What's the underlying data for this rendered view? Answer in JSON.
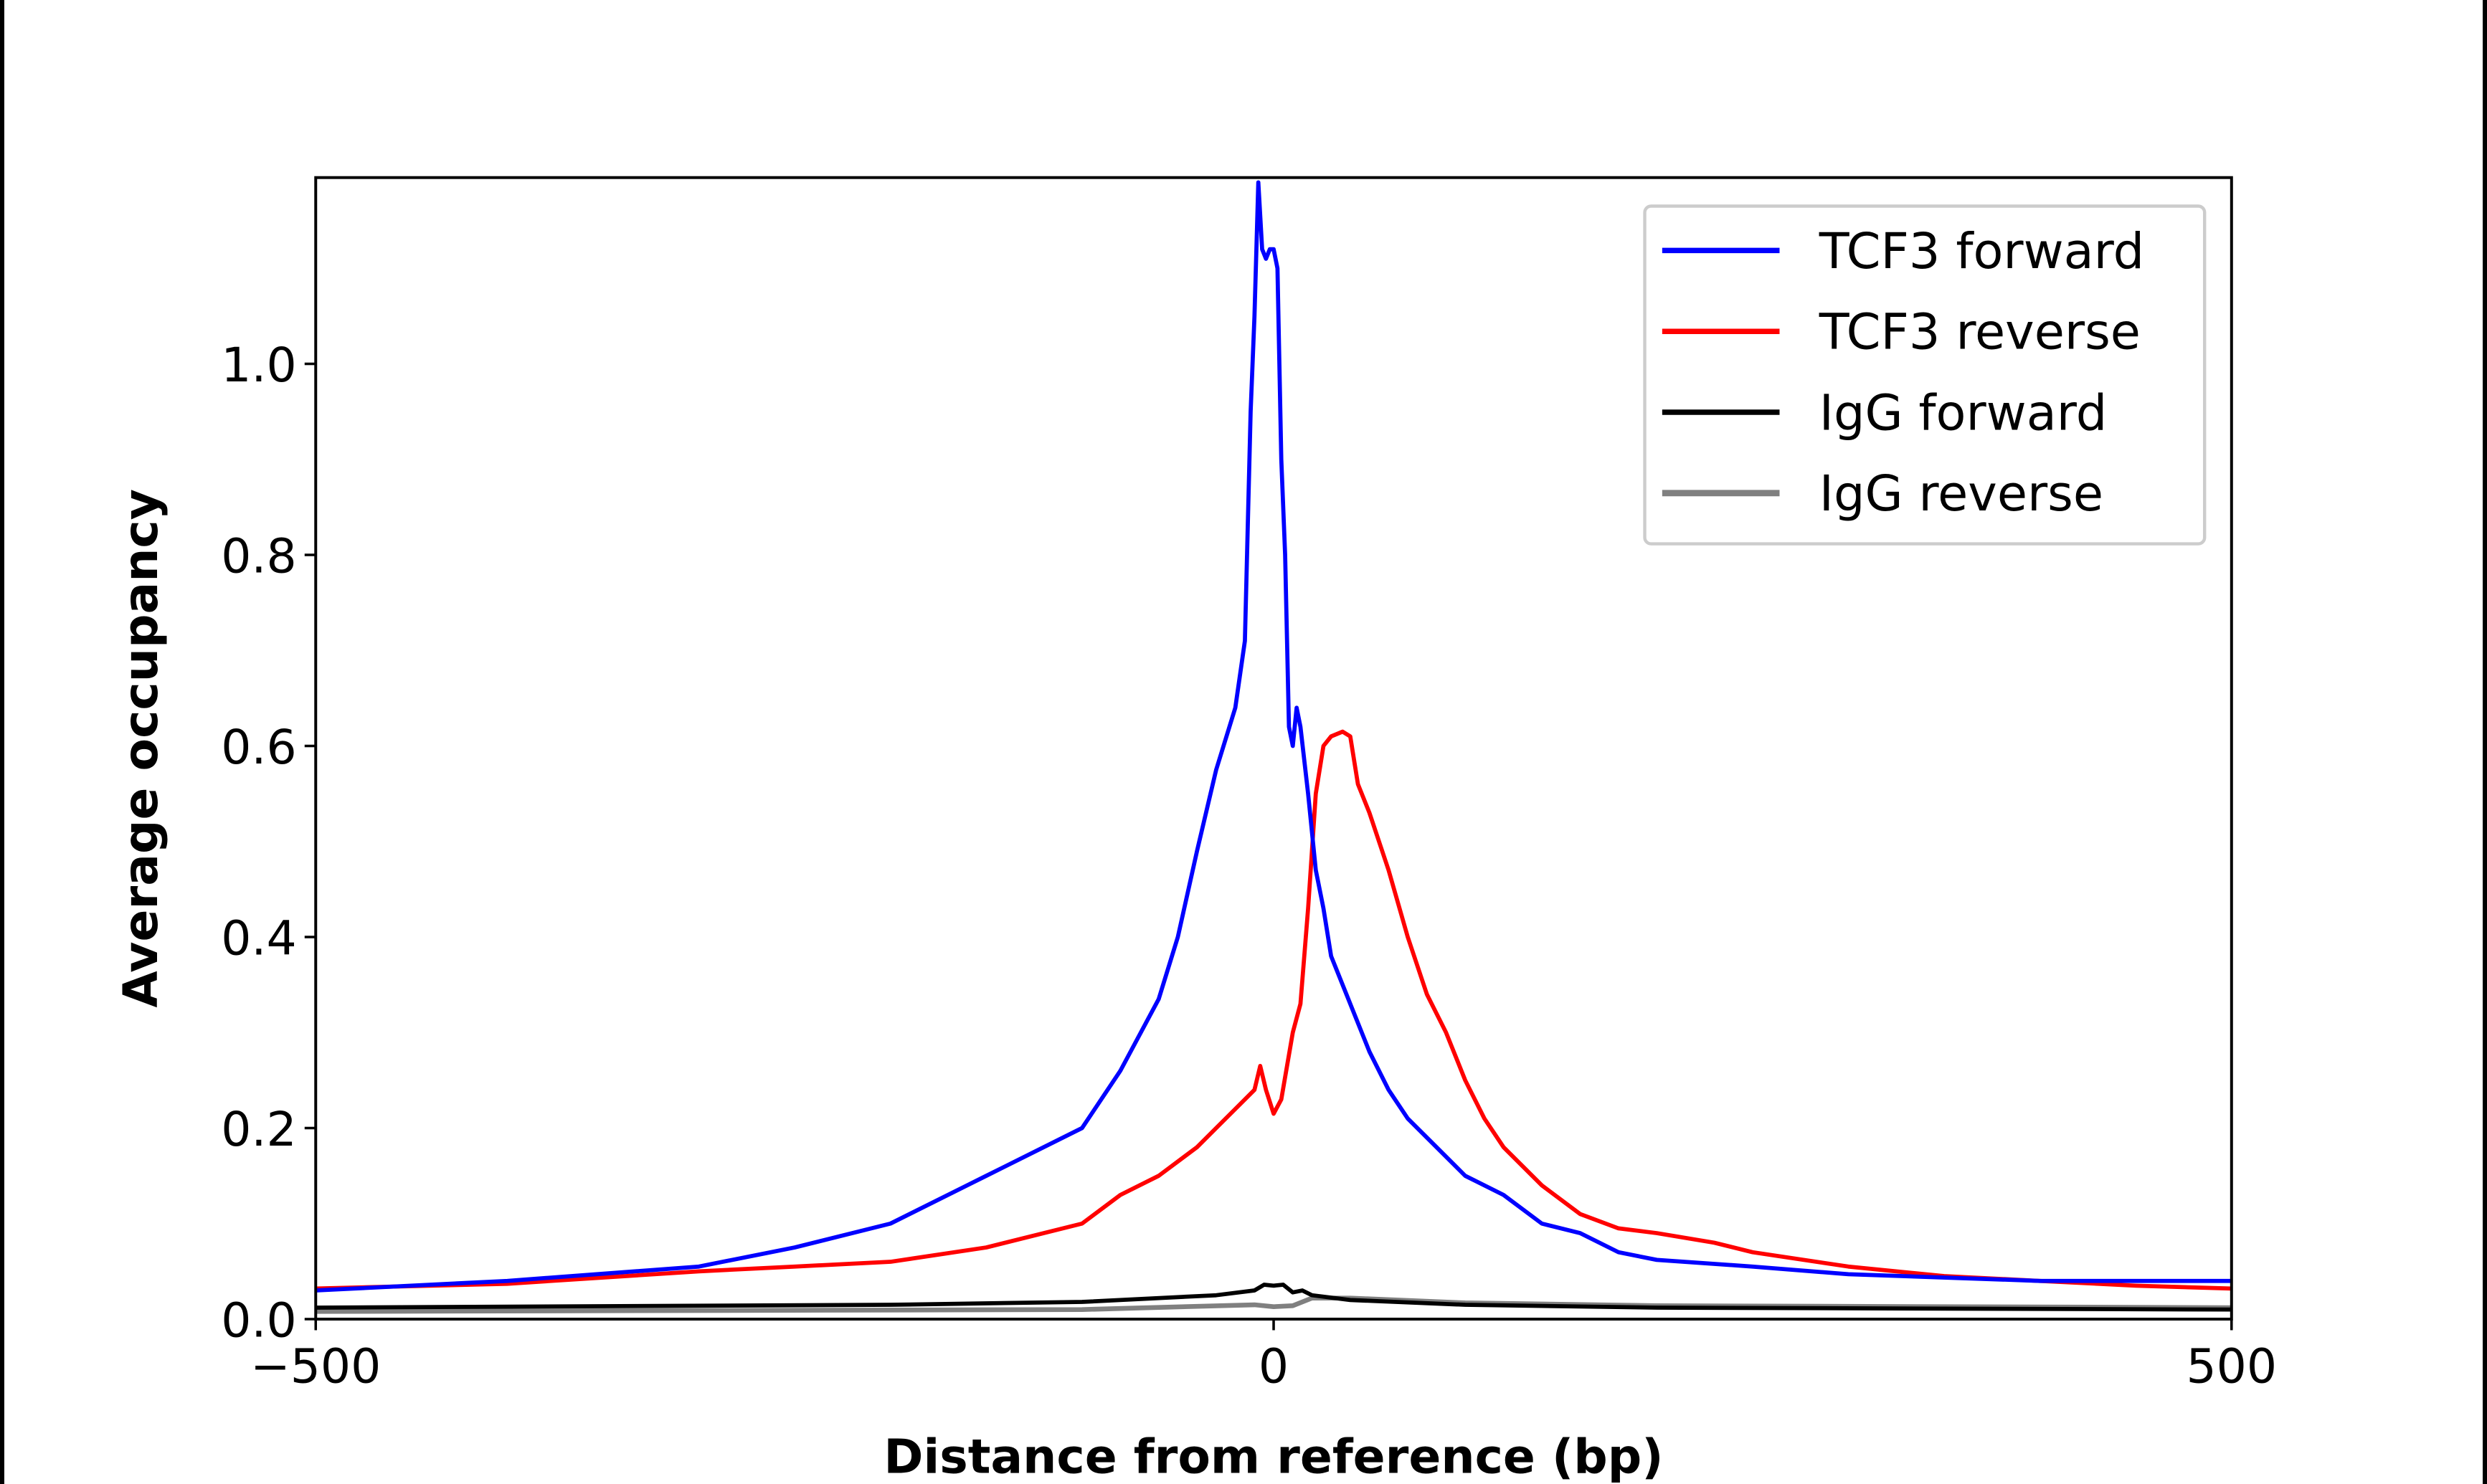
{
  "chart_data": {
    "type": "line",
    "title": "",
    "xlabel": "Distance from reference (bp)",
    "ylabel": "Average occupancy",
    "xlim": [
      -500,
      500
    ],
    "ylim": [
      0,
      1.195
    ],
    "xticks": [
      -500,
      0,
      500
    ],
    "xtick_labels": [
      "−500",
      "0",
      "500"
    ],
    "yticks": [
      0.0,
      0.2,
      0.4,
      0.6,
      0.8,
      1.0
    ],
    "ytick_labels": [
      "0.0",
      "0.2",
      "0.4",
      "0.6",
      "0.8",
      "1.0"
    ],
    "grid": false,
    "legend_position": "top-right",
    "series": [
      {
        "name": "TCF3 forward",
        "color": "#0000ff",
        "x": [
          -500,
          -400,
          -300,
          -250,
          -200,
          -150,
          -100,
          -80,
          -60,
          -50,
          -40,
          -30,
          -20,
          -15,
          -12,
          -10,
          -8,
          -6,
          -4,
          -2,
          0,
          2,
          4,
          6,
          8,
          10,
          12,
          14,
          18,
          22,
          26,
          30,
          40,
          50,
          60,
          70,
          80,
          100,
          120,
          140,
          160,
          180,
          200,
          250,
          300,
          400,
          500
        ],
        "y": [
          0.03,
          0.04,
          0.055,
          0.075,
          0.1,
          0.15,
          0.2,
          0.26,
          0.335,
          0.4,
          0.49,
          0.575,
          0.64,
          0.71,
          0.95,
          1.05,
          1.19,
          1.12,
          1.11,
          1.12,
          1.12,
          1.1,
          0.9,
          0.8,
          0.62,
          0.6,
          0.64,
          0.62,
          0.55,
          0.47,
          0.43,
          0.38,
          0.33,
          0.28,
          0.24,
          0.21,
          0.19,
          0.15,
          0.13,
          0.1,
          0.09,
          0.07,
          0.062,
          0.055,
          0.047,
          0.04,
          0.04
        ]
      },
      {
        "name": "TCF3 reverse",
        "color": "#ff0000",
        "x": [
          -500,
          -400,
          -300,
          -250,
          -200,
          -150,
          -100,
          -80,
          -60,
          -40,
          -30,
          -20,
          -10,
          -7,
          -4,
          0,
          4,
          10,
          14,
          18,
          22,
          26,
          30,
          36,
          40,
          44,
          50,
          60,
          70,
          80,
          90,
          100,
          110,
          120,
          140,
          160,
          180,
          200,
          230,
          250,
          300,
          350,
          400,
          450,
          500
        ],
        "y": [
          0.032,
          0.037,
          0.05,
          0.055,
          0.06,
          0.075,
          0.1,
          0.13,
          0.15,
          0.18,
          0.2,
          0.22,
          0.24,
          0.265,
          0.24,
          0.215,
          0.23,
          0.3,
          0.33,
          0.43,
          0.55,
          0.6,
          0.61,
          0.615,
          0.61,
          0.56,
          0.53,
          0.47,
          0.4,
          0.34,
          0.3,
          0.25,
          0.21,
          0.18,
          0.14,
          0.11,
          0.095,
          0.09,
          0.08,
          0.07,
          0.055,
          0.045,
          0.04,
          0.035,
          0.032
        ]
      },
      {
        "name": "IgG forward",
        "color": "#000000",
        "x": [
          -500,
          -200,
          -100,
          -30,
          -10,
          -5,
          0,
          5,
          10,
          15,
          20,
          40,
          100,
          200,
          500
        ],
        "y": [
          0.012,
          0.015,
          0.018,
          0.025,
          0.03,
          0.036,
          0.035,
          0.036,
          0.028,
          0.03,
          0.025,
          0.02,
          0.015,
          0.012,
          0.01
        ]
      },
      {
        "name": "IgG reverse",
        "color": "#808080",
        "x": [
          -500,
          -100,
          -10,
          0,
          10,
          20,
          40,
          100,
          200,
          500
        ],
        "y": [
          0.008,
          0.01,
          0.015,
          0.013,
          0.014,
          0.022,
          0.022,
          0.017,
          0.014,
          0.012
        ]
      }
    ]
  }
}
